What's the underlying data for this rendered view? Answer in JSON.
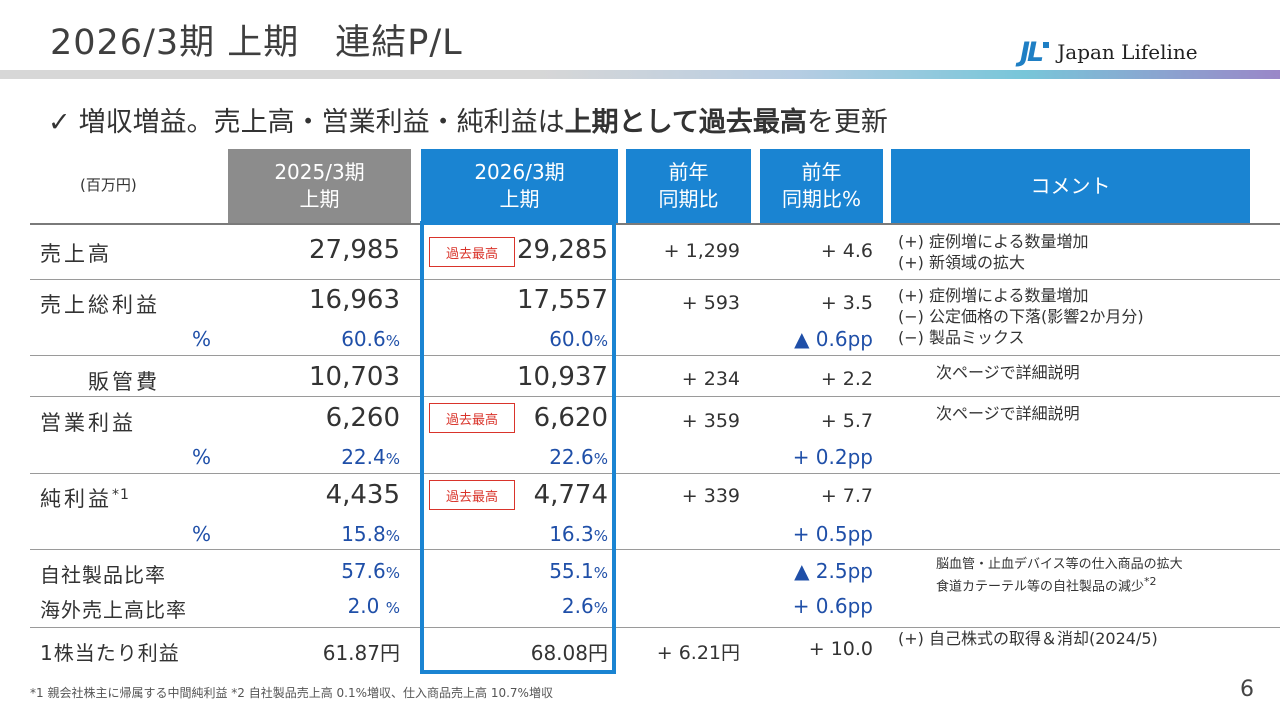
{
  "title": "2026/3期 上期　連結P/L",
  "logo": {
    "mark": "JL",
    "text": "Japan Lifeline"
  },
  "headline": {
    "check": "✓",
    "part1": "増収増益。売上高・営業利益・純利益は",
    "bold": "上期として過去最高",
    "part2": "を更新"
  },
  "table": {
    "unit": "(百万円)",
    "headers": {
      "prev": [
        "2025/3期",
        "上期"
      ],
      "curr": [
        "2026/3期",
        "上期"
      ],
      "yoy": [
        "前年",
        "同期比"
      ],
      "yoy_pct": [
        "前年",
        "同期比%"
      ],
      "comment": "コメント"
    },
    "badge": "過去最高",
    "pct_label": "%",
    "rows": {
      "sales": {
        "label": "売上高",
        "prev": "27,985",
        "curr": "29,285",
        "diff": "+ 1,299",
        "diff_pct": "+ 4.6",
        "comments": [
          "(+) 症例増による数量増加",
          "(+) 新領域の拡大"
        ]
      },
      "gross": {
        "label": "売上総利益",
        "prev": "16,963",
        "curr": "17,557",
        "diff": "+ 593",
        "diff_pct": "+ 3.5",
        "comments": [
          "(+) 症例増による数量増加",
          "(−) 公定価格の下落(影響2か月分)",
          "(−) 製品ミックス"
        ]
      },
      "gross_pct": {
        "prev": "60.6",
        "curr": "60.0",
        "diff_pct": "▲ 0.6pp"
      },
      "sga": {
        "label": "販管費",
        "prev": "10,703",
        "curr": "10,937",
        "diff": "+ 234",
        "diff_pct": "+ 2.2",
        "comment": "次ページで詳細説明"
      },
      "op": {
        "label": "営業利益",
        "prev": "6,260",
        "curr": "6,620",
        "diff": "+ 359",
        "diff_pct": "+ 5.7",
        "comment": "次ページで詳細説明"
      },
      "op_pct": {
        "prev": "22.4",
        "curr": "22.6",
        "diff_pct": "+ 0.2pp"
      },
      "net": {
        "label": "純利益",
        "sup": "*1",
        "prev": "4,435",
        "curr": "4,774",
        "diff": "+ 339",
        "diff_pct": "+ 7.7"
      },
      "net_pct": {
        "prev": "15.8",
        "curr": "16.3",
        "diff_pct": "+ 0.5pp"
      },
      "own": {
        "label": "自社製品比率",
        "prev": "57.6",
        "curr": "55.1",
        "diff_pct": "▲ 2.5pp",
        "comments": [
          "脳血管・止血デバイス等の仕入商品の拡大",
          "食道カテーテル等の自社製品の減少"
        ],
        "comment_sup": "*2"
      },
      "overseas": {
        "label": "海外売上高比率",
        "prev": "2.0",
        "curr": "2.6",
        "diff_pct": "+ 0.6pp"
      },
      "eps": {
        "label": "1株当たり利益",
        "prev": "61.87円",
        "curr": "68.08円",
        "diff": "+ 6.21円",
        "diff_pct": "+ 10.0",
        "comment": "(+) 自己株式の取得＆消却(2024/5)"
      }
    }
  },
  "footnote": "*1 親会社株主に帰属する中間純利益 *2 自社製品売上高 0.1%増収、仕入商品売上高 10.7%増収",
  "page_number": "6",
  "colors": {
    "header_blue": "#1a84d2",
    "header_gray": "#8c8c8c",
    "record_red": "#d9342b",
    "pct_blue": "#1f4fa8"
  }
}
